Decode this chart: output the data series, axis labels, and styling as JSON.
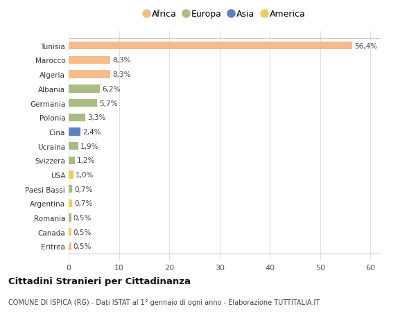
{
  "countries": [
    "Tunisia",
    "Marocco",
    "Algeria",
    "Albania",
    "Germania",
    "Polonia",
    "Cina",
    "Ucraina",
    "Svizzera",
    "USA",
    "Paesi Bassi",
    "Argentina",
    "Romania",
    "Canada",
    "Eritrea"
  ],
  "values": [
    56.4,
    8.3,
    8.3,
    6.2,
    5.7,
    3.3,
    2.4,
    1.9,
    1.2,
    1.0,
    0.7,
    0.7,
    0.5,
    0.5,
    0.5
  ],
  "labels": [
    "56,4%",
    "8,3%",
    "8,3%",
    "6,2%",
    "5,7%",
    "3,3%",
    "2,4%",
    "1,9%",
    "1,2%",
    "1,0%",
    "0,7%",
    "0,7%",
    "0,5%",
    "0,5%",
    "0,5%"
  ],
  "colors": [
    "#f5bc8a",
    "#f5bc8a",
    "#f5bc8a",
    "#a8bc84",
    "#a8bc84",
    "#a8bc84",
    "#6080c0",
    "#a8bc84",
    "#a8bc84",
    "#f0cc60",
    "#a8bc84",
    "#f0cc60",
    "#a8bc84",
    "#f0cc60",
    "#f5bc8a"
  ],
  "legend_names": [
    "Africa",
    "Europa",
    "Asia",
    "America"
  ],
  "legend_colors": [
    "#f5bc8a",
    "#a8bc84",
    "#6080c0",
    "#f0cc60"
  ],
  "xlim": [
    0,
    62
  ],
  "xticks": [
    0,
    10,
    20,
    30,
    40,
    50,
    60
  ],
  "title": "Cittadini Stranieri per Cittadinanza",
  "subtitle": "COMUNE DI ISPICA (RG) - Dati ISTAT al 1° gennaio di ogni anno - Elaborazione TUTTITALIA.IT",
  "bg_color": "#ffffff",
  "plot_bg_color": "#ffffff",
  "grid_color": "#e0e0e0",
  "bar_height": 0.55
}
